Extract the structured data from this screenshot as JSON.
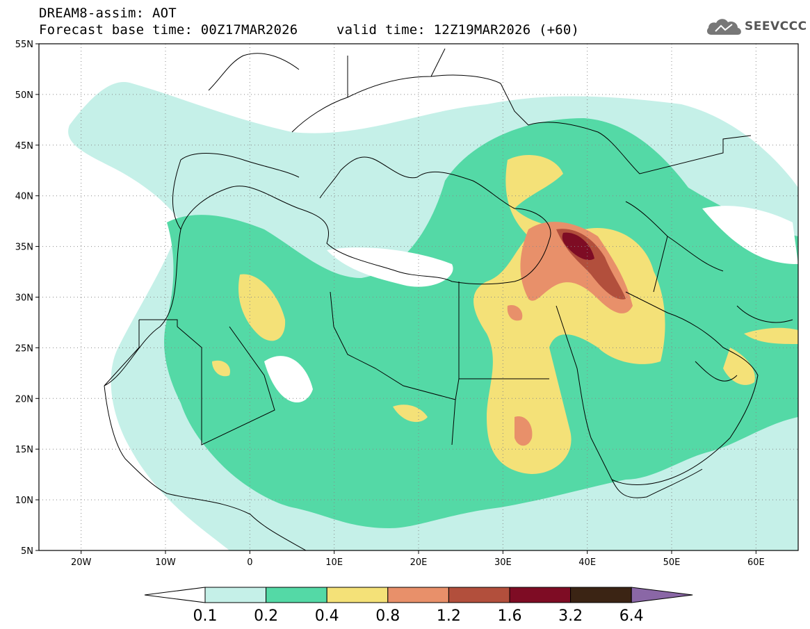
{
  "header": {
    "title_line1": "DREAM8-assim: AOT",
    "title_line2_base": "Forecast base time: 00Z17MAR2026",
    "title_line2_valid": "valid time: 12Z19MAR2026 (+60)"
  },
  "logo": {
    "text": "SEEVCCC",
    "icon": "cloud-icon"
  },
  "map": {
    "lon_range": [
      -25,
      65
    ],
    "lat_range": [
      5,
      55
    ],
    "lat_ticks": [
      "55N",
      "50N",
      "45N",
      "40N",
      "35N",
      "30N",
      "25N",
      "20N",
      "15N",
      "10N",
      "5N"
    ],
    "lon_ticks": [
      "20W",
      "10W",
      "0",
      "10E",
      "20E",
      "30E",
      "40E",
      "50E",
      "60E"
    ],
    "gridlines": "dotted"
  },
  "colorbar": {
    "labels": [
      "0.1",
      "0.2",
      "0.4",
      "0.8",
      "1.2",
      "1.6",
      "3.2",
      "6.4"
    ],
    "colors": [
      "#c5f0e8",
      "#54d9a6",
      "#f4e178",
      "#e8906a",
      "#b24f3c",
      "#7e0c24",
      "#3b2414",
      "#8a67a6"
    ],
    "under_color": "#ffffff"
  }
}
